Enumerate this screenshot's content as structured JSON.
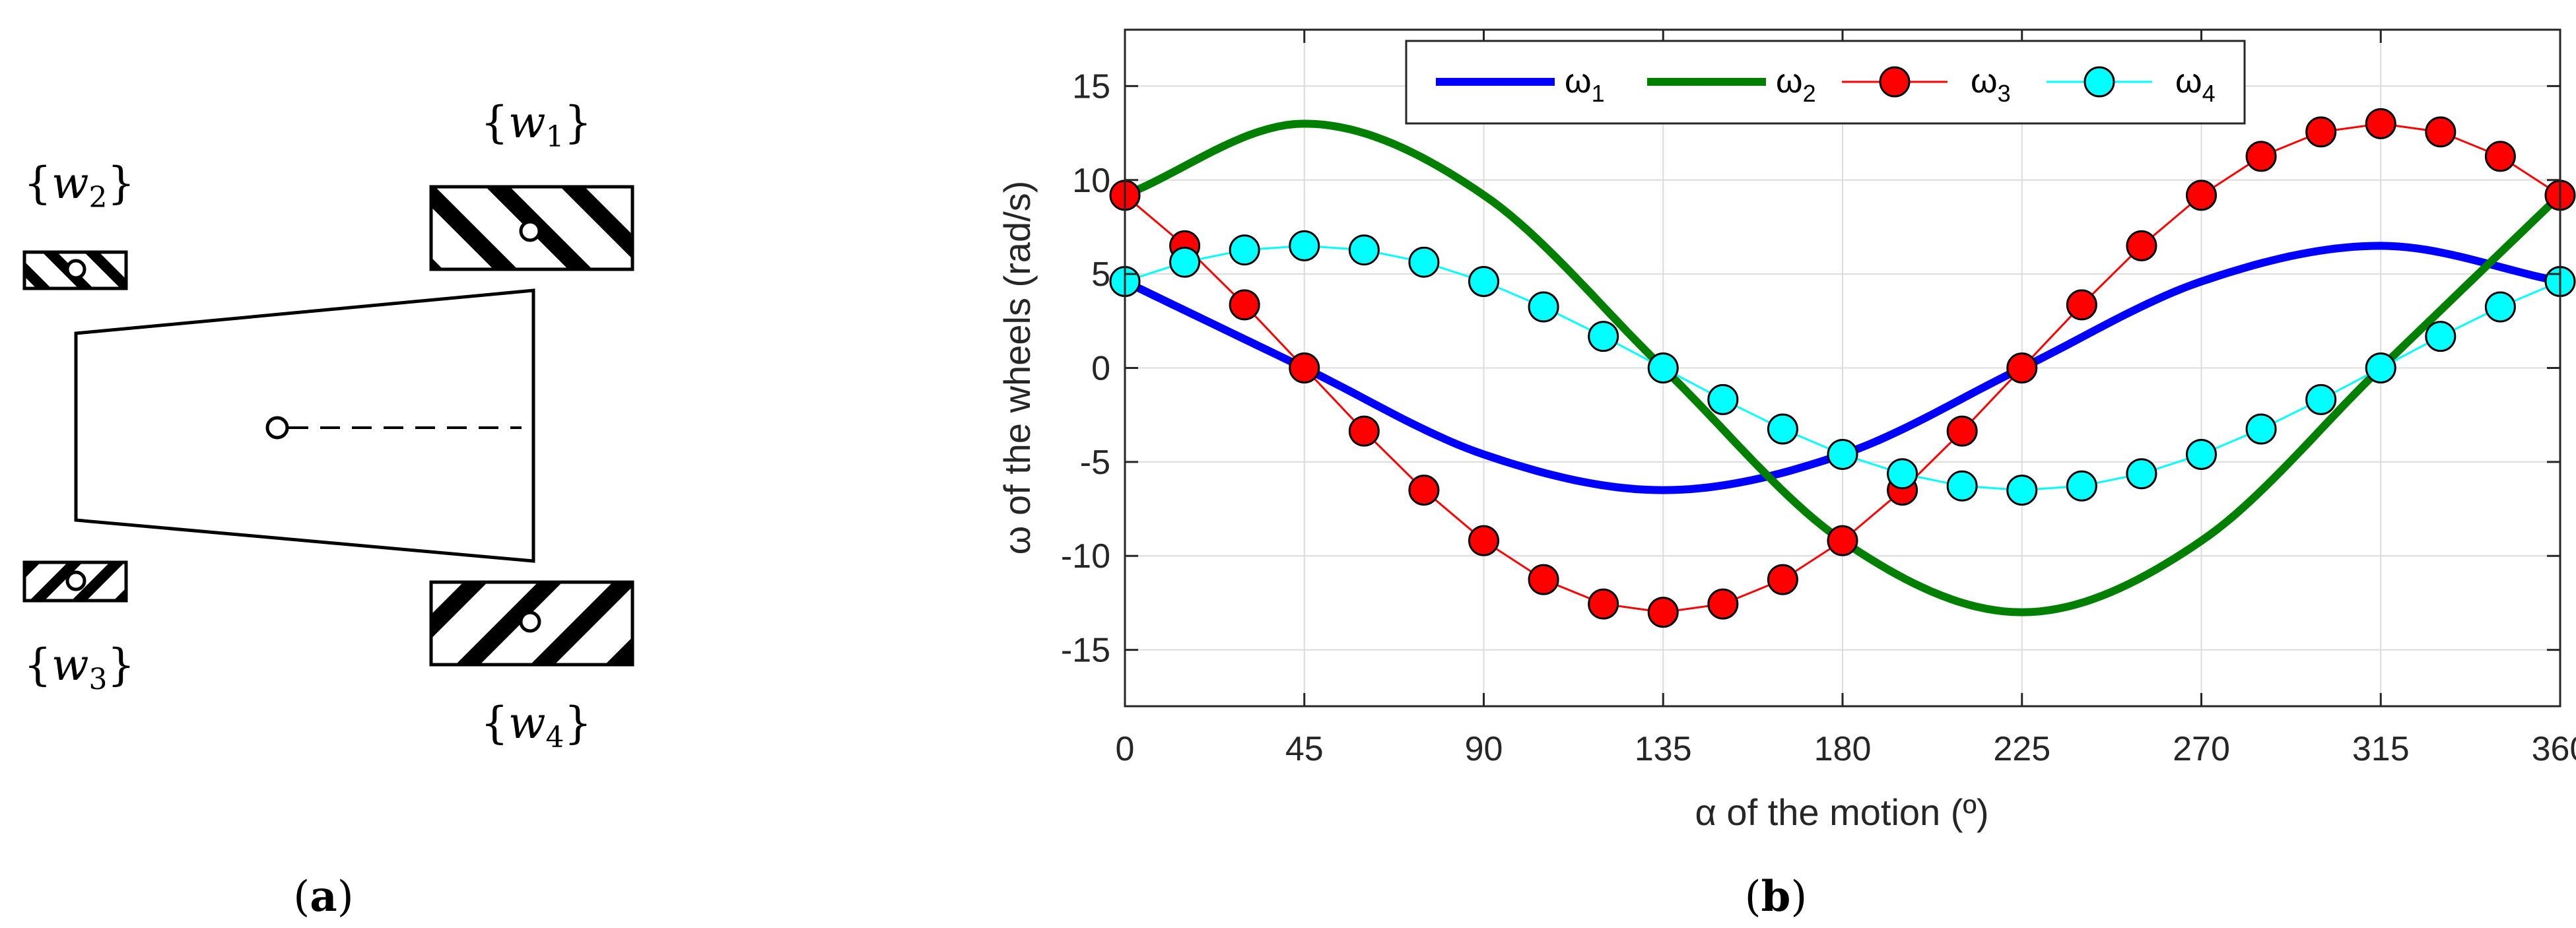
{
  "panel_a": {
    "caption_open": "(",
    "caption_letter": "a",
    "caption_close": ")",
    "wheels": [
      {
        "brace_open": "{",
        "var": "w",
        "sub": "1",
        "brace_close": "}"
      },
      {
        "brace_open": "{",
        "var": "w",
        "sub": "2",
        "brace_close": "}"
      },
      {
        "brace_open": "{",
        "var": "w",
        "sub": "3",
        "brace_close": "}"
      },
      {
        "brace_open": "{",
        "var": "w",
        "sub": "4",
        "brace_close": "}"
      }
    ]
  },
  "panel_b": {
    "caption_open": "(",
    "caption_letter": "b",
    "caption_close": ")"
  },
  "chart_data": {
    "type": "line",
    "title": "",
    "xlabel": "α of the motion (º)",
    "ylabel": "ω of the wheels (rad/s)",
    "xlim": [
      0,
      360
    ],
    "ylim": [
      -18,
      18
    ],
    "xticks": [
      0,
      45,
      90,
      135,
      180,
      225,
      270,
      315,
      360
    ],
    "yticks": [
      -15,
      -10,
      -5,
      0,
      5,
      10,
      15
    ],
    "grid": true,
    "legend_position": "top",
    "series": [
      {
        "name": "ω₁",
        "legend_base": "ω",
        "legend_sub": "1",
        "style": "solid-thick",
        "marker": "none",
        "color": "#0000ff",
        "formula": "6.5*sin(alpha - 45°)*(-1)",
        "x": [
          0,
          45,
          90,
          135,
          180,
          225,
          270,
          315,
          360
        ],
        "values": [
          4.6,
          0,
          -4.6,
          -6.5,
          -4.6,
          0,
          4.6,
          6.5,
          4.6
        ]
      },
      {
        "name": "ω₂",
        "legend_base": "ω",
        "legend_sub": "2",
        "style": "solid-thick",
        "marker": "none",
        "color": "#007f00",
        "formula": "13*sin(alpha + 45°)",
        "x": [
          0,
          45,
          90,
          135,
          180,
          225,
          270,
          315,
          360
        ],
        "values": [
          9.2,
          13,
          9.2,
          0,
          -9.2,
          -13,
          -9.2,
          0,
          9.2
        ]
      },
      {
        "name": "ω₃",
        "legend_base": "ω",
        "legend_sub": "3",
        "style": "thin",
        "marker": "circle",
        "color": "#ff0000",
        "x": [
          0,
          15,
          30,
          45,
          60,
          75,
          90,
          105,
          120,
          135,
          150,
          165,
          180,
          195,
          210,
          225,
          240,
          255,
          270,
          285,
          300,
          315,
          330,
          345,
          360
        ],
        "values": [
          9.19,
          6.5,
          3.36,
          0,
          -3.36,
          -6.5,
          -9.19,
          -11.26,
          -12.56,
          -13,
          -12.56,
          -11.26,
          -9.19,
          -6.5,
          -3.36,
          0,
          3.36,
          6.5,
          9.19,
          11.26,
          12.56,
          13,
          12.56,
          11.26,
          9.19
        ]
      },
      {
        "name": "ω₄",
        "legend_base": "ω",
        "legend_sub": "4",
        "style": "thin",
        "marker": "circle",
        "color": "#00ffff",
        "x": [
          0,
          15,
          30,
          45,
          60,
          75,
          90,
          105,
          120,
          135,
          150,
          165,
          180,
          195,
          210,
          225,
          240,
          255,
          270,
          285,
          300,
          315,
          330,
          345,
          360
        ],
        "values": [
          4.6,
          5.63,
          6.28,
          6.5,
          6.28,
          5.63,
          4.6,
          3.25,
          1.68,
          0,
          -1.68,
          -3.25,
          -4.6,
          -5.63,
          -6.28,
          -6.5,
          -6.28,
          -5.63,
          -4.6,
          -3.25,
          -1.68,
          0,
          1.68,
          3.25,
          4.6
        ]
      }
    ]
  }
}
